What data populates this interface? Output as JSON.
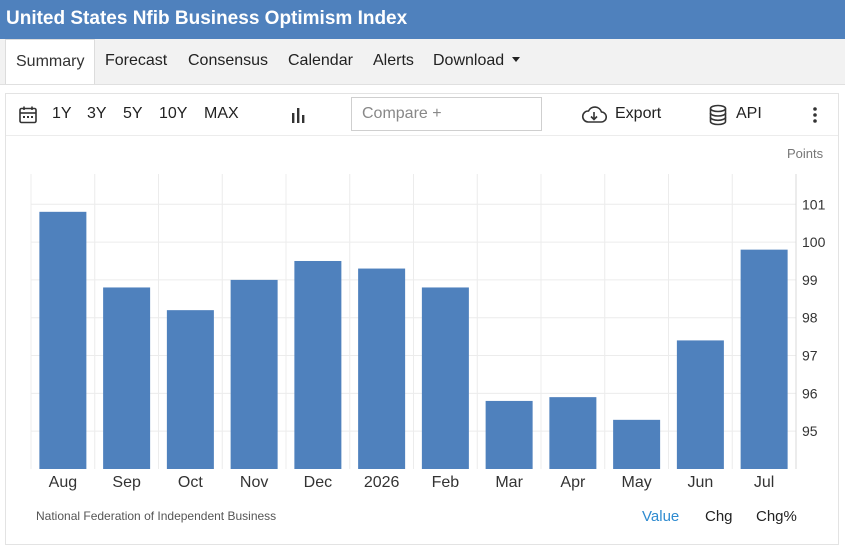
{
  "title": "United States Nfib Business Optimism Index",
  "tabs": [
    {
      "label": "Summary"
    },
    {
      "label": "Forecast"
    },
    {
      "label": "Consensus"
    },
    {
      "label": "Calendar"
    },
    {
      "label": "Alerts"
    },
    {
      "label": "Download"
    }
  ],
  "toolbar": {
    "ranges": [
      "1Y",
      "3Y",
      "5Y",
      "10Y",
      "MAX"
    ],
    "compare_placeholder": "Compare +",
    "export_label": "Export",
    "api_label": "API"
  },
  "footer": {
    "source": "National Federation of Independent Business",
    "value_label": "Value",
    "chg_label": "Chg",
    "chgpct_label": "Chg%"
  },
  "colors": {
    "header": "#4f81bd",
    "bar": "#4f81bd",
    "active_link": "#2e8bd0"
  },
  "chart_data": {
    "type": "bar",
    "units": "Points",
    "categories": [
      "Aug",
      "Sep",
      "Oct",
      "Nov",
      "Dec",
      "2026",
      "Feb",
      "Mar",
      "Apr",
      "May",
      "Jun",
      "Jul"
    ],
    "values": [
      100.8,
      98.8,
      98.2,
      99.0,
      99.5,
      99.3,
      98.8,
      95.8,
      95.9,
      95.3,
      97.4,
      99.8
    ],
    "yticks": [
      95,
      96,
      97,
      98,
      99,
      100,
      101
    ],
    "ylim": [
      94.0,
      101.8
    ],
    "grid": true,
    "yaxis_position": "right"
  }
}
